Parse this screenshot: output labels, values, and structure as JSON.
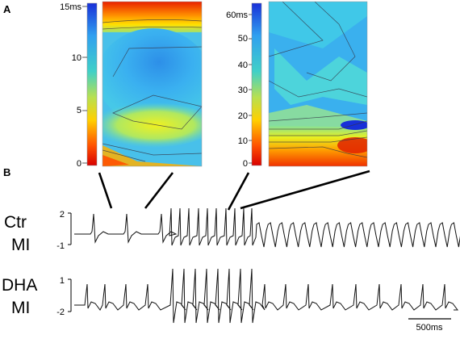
{
  "panels": {
    "a_label": "A",
    "b_label": "B"
  },
  "map_left": {
    "scale_ticks": [
      "15ms",
      "10",
      "5",
      "0"
    ]
  },
  "map_right": {
    "scale_ticks": [
      "60ms",
      "50",
      "40",
      "30",
      "20",
      "10",
      "0"
    ]
  },
  "trace_ctr": {
    "label_line1": "Ctr",
    "label_line2": "MI",
    "y_ticks": [
      "2",
      "-1"
    ]
  },
  "trace_dha": {
    "label_line1": "DHA",
    "label_line2": "MI",
    "y_ticks": [
      "1",
      "-2"
    ]
  },
  "scale_bar": {
    "label": "500ms"
  },
  "colors": {
    "colormap": [
      "#d80000",
      "#ff4000",
      "#ffa000",
      "#ffe800",
      "#a8e060",
      "#40d8d0",
      "#30a8f0",
      "#1838e0"
    ],
    "trace": "#111111",
    "connector": "#000000"
  }
}
